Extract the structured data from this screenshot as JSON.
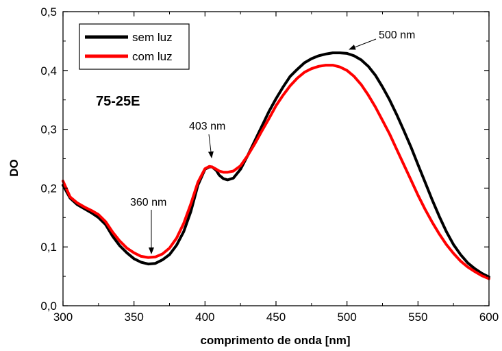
{
  "chart_data": {
    "type": "line",
    "title": "",
    "xlabel": "comprimento de onda [nm]",
    "ylabel": "DO",
    "xlim": [
      300,
      600
    ],
    "ylim": [
      0.0,
      0.5
    ],
    "xticks": [
      300,
      350,
      400,
      450,
      500,
      550,
      600
    ],
    "yticks": [
      0.0,
      0.1,
      0.2,
      0.3,
      0.4,
      0.5
    ],
    "xtick_labels": [
      "300",
      "350",
      "400",
      "450",
      "500",
      "550",
      "600"
    ],
    "ytick_labels": [
      "0,0",
      "0,1",
      "0,2",
      "0,3",
      "0,4",
      "0,5"
    ],
    "grid": false,
    "legend_position": "top-left",
    "sample_label": "75-25E",
    "series": [
      {
        "name": "sem luz",
        "color": "#000000",
        "x": [
          300,
          305,
          310,
          315,
          320,
          325,
          330,
          335,
          340,
          345,
          350,
          355,
          360,
          365,
          370,
          375,
          380,
          385,
          390,
          395,
          400,
          403,
          405,
          408,
          410,
          413,
          416,
          420,
          425,
          430,
          435,
          440,
          445,
          450,
          455,
          460,
          465,
          470,
          475,
          480,
          485,
          490,
          495,
          500,
          505,
          510,
          515,
          520,
          525,
          530,
          535,
          540,
          545,
          550,
          555,
          560,
          565,
          570,
          575,
          580,
          585,
          590,
          595,
          600
        ],
        "y": [
          0.205,
          0.183,
          0.172,
          0.165,
          0.158,
          0.15,
          0.138,
          0.118,
          0.102,
          0.09,
          0.08,
          0.074,
          0.071,
          0.072,
          0.078,
          0.087,
          0.103,
          0.126,
          0.16,
          0.205,
          0.232,
          0.236,
          0.236,
          0.23,
          0.222,
          0.216,
          0.214,
          0.217,
          0.232,
          0.255,
          0.28,
          0.305,
          0.33,
          0.352,
          0.372,
          0.39,
          0.402,
          0.413,
          0.42,
          0.425,
          0.428,
          0.43,
          0.43,
          0.429,
          0.425,
          0.418,
          0.407,
          0.392,
          0.372,
          0.35,
          0.325,
          0.298,
          0.27,
          0.24,
          0.21,
          0.18,
          0.152,
          0.126,
          0.104,
          0.087,
          0.073,
          0.063,
          0.055,
          0.049
        ]
      },
      {
        "name": "com luz",
        "color": "#ff0000",
        "x": [
          300,
          305,
          310,
          315,
          320,
          325,
          330,
          335,
          340,
          345,
          350,
          355,
          360,
          365,
          370,
          375,
          380,
          385,
          390,
          395,
          400,
          403,
          405,
          408,
          410,
          413,
          416,
          420,
          425,
          430,
          435,
          440,
          445,
          450,
          455,
          460,
          465,
          470,
          475,
          480,
          485,
          490,
          495,
          500,
          505,
          510,
          515,
          520,
          525,
          530,
          535,
          540,
          545,
          550,
          555,
          560,
          565,
          570,
          575,
          580,
          585,
          590,
          595,
          600
        ],
        "y": [
          0.212,
          0.185,
          0.175,
          0.168,
          0.162,
          0.155,
          0.143,
          0.125,
          0.11,
          0.098,
          0.09,
          0.084,
          0.082,
          0.083,
          0.088,
          0.098,
          0.115,
          0.14,
          0.173,
          0.21,
          0.233,
          0.237,
          0.236,
          0.232,
          0.229,
          0.227,
          0.227,
          0.229,
          0.238,
          0.255,
          0.275,
          0.297,
          0.318,
          0.34,
          0.358,
          0.374,
          0.387,
          0.397,
          0.403,
          0.407,
          0.409,
          0.409,
          0.406,
          0.4,
          0.39,
          0.376,
          0.358,
          0.338,
          0.315,
          0.292,
          0.266,
          0.24,
          0.214,
          0.188,
          0.164,
          0.142,
          0.122,
          0.104,
          0.089,
          0.076,
          0.066,
          0.058,
          0.051,
          0.046
        ]
      }
    ],
    "annotations": [
      {
        "text": "500 nm",
        "x": 500,
        "y": 0.43
      },
      {
        "text": "403 nm",
        "x": 405,
        "y": 0.237
      },
      {
        "text": "360 nm",
        "x": 362,
        "y": 0.079
      }
    ]
  }
}
